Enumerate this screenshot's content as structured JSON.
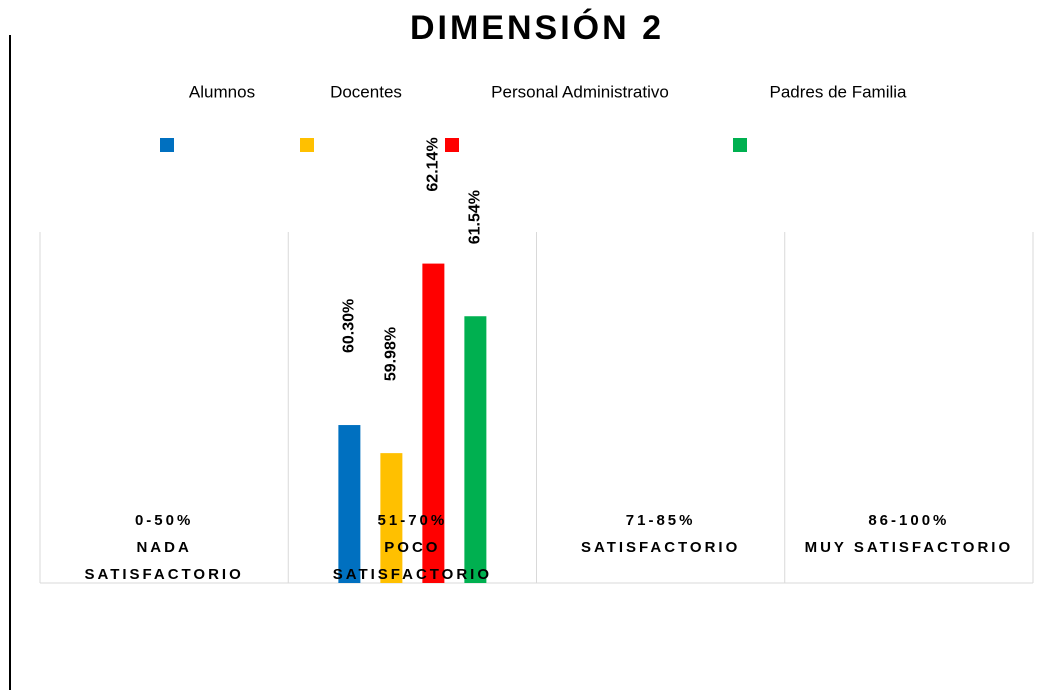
{
  "chart_data": {
    "type": "bar",
    "title": "DIMENSIÓN 2",
    "categories": [
      [
        "0-50%",
        "NADA",
        "SATISFACTORIO"
      ],
      [
        "51-70%",
        "POCO",
        "SATISFACTORIO"
      ],
      [
        "71-85%",
        "SATISFACTORIO"
      ],
      [
        "86-100%",
        "MUY SATISFACTORIO"
      ]
    ],
    "series": [
      {
        "name": "Alumnos",
        "color": "#0070c0",
        "values": [
          null,
          60.3,
          null,
          null
        ],
        "value_labels": [
          null,
          "60.30%",
          null,
          null
        ]
      },
      {
        "name": "Docentes",
        "color": "#ffc000",
        "values": [
          null,
          59.98,
          null,
          null
        ],
        "value_labels": [
          null,
          "59.98%",
          null,
          null
        ]
      },
      {
        "name": "Personal Administrativo",
        "color": "#ff0000",
        "values": [
          null,
          62.14,
          null,
          null
        ],
        "value_labels": [
          null,
          "62.14%",
          null,
          null
        ]
      },
      {
        "name": "Padres de Familia",
        "color": "#00b050",
        "values": [
          null,
          61.54,
          null,
          null
        ],
        "value_labels": [
          null,
          "61.54%",
          null,
          null
        ]
      }
    ],
    "ylim": [
      58.5,
      62.5
    ]
  }
}
